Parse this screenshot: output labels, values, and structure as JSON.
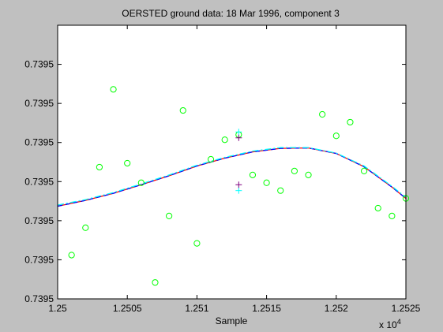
{
  "chart_data": {
    "type": "scatter",
    "title": "OERSTED ground data: 18 Mar 1996, component 3",
    "xlabel": "Sample",
    "ylabel": "",
    "x_multiplier_label": "x 10",
    "x_multiplier_exponent": "4",
    "xlim": [
      12500,
      12525
    ],
    "ylim": [
      0,
      7
    ],
    "xticks": [
      {
        "value": 12500,
        "label": "1.25"
      },
      {
        "value": 12505,
        "label": "1.2505"
      },
      {
        "value": 12510,
        "label": "1.251"
      },
      {
        "value": 12515,
        "label": "1.2515"
      },
      {
        "value": 12520,
        "label": "1.252"
      },
      {
        "value": 12525,
        "label": "1.2525"
      }
    ],
    "yticks": [
      {
        "value": 0,
        "label": "0.7395"
      },
      {
        "value": 1,
        "label": "0.7395"
      },
      {
        "value": 2,
        "label": "0.7395"
      },
      {
        "value": 3,
        "label": "0.7395"
      },
      {
        "value": 4,
        "label": "0.7395"
      },
      {
        "value": 5,
        "label": "0.7395"
      },
      {
        "value": 6,
        "label": "0.7395"
      }
    ],
    "grid": false,
    "series": [
      {
        "marker": "circle",
        "color": "#00ff00",
        "points": [
          [
            12501,
            1.12
          ],
          [
            12502,
            1.82
          ],
          [
            12503,
            3.37
          ],
          [
            12504,
            5.36
          ],
          [
            12505,
            3.47
          ],
          [
            12506,
            2.97
          ],
          [
            12507,
            0.42
          ],
          [
            12508,
            2.12
          ],
          [
            12509,
            4.82
          ],
          [
            12510,
            1.42
          ],
          [
            12511,
            3.57
          ],
          [
            12512,
            4.07
          ],
          [
            12513,
            4.2
          ],
          [
            12514,
            3.17
          ],
          [
            12515,
            2.97
          ],
          [
            12516,
            2.77
          ],
          [
            12517,
            3.27
          ],
          [
            12518,
            3.17
          ],
          [
            12519,
            4.72
          ],
          [
            12520,
            4.17
          ],
          [
            12521,
            4.52
          ],
          [
            12522,
            3.27
          ],
          [
            12523,
            2.32
          ],
          [
            12524,
            2.12
          ],
          [
            12525,
            2.57
          ]
        ]
      },
      {
        "marker": "plus",
        "color": "#00ffff",
        "points": [
          [
            12513,
            4.27
          ],
          [
            12513,
            2.77
          ]
        ]
      },
      {
        "marker": "plus",
        "color": "#800080",
        "points": [
          [
            12513,
            4.12
          ],
          [
            12513,
            2.92
          ]
        ]
      },
      {
        "marker": "line",
        "color": "#ff0000",
        "style": "solid",
        "points": [
          [
            12500,
            2.37
          ],
          [
            12502,
            2.52
          ],
          [
            12504,
            2.7
          ],
          [
            12506,
            2.92
          ],
          [
            12508,
            3.15
          ],
          [
            12510,
            3.4
          ],
          [
            12512,
            3.6
          ],
          [
            12514,
            3.76
          ],
          [
            12516,
            3.85
          ],
          [
            12518,
            3.86
          ],
          [
            12520,
            3.72
          ],
          [
            12522,
            3.38
          ],
          [
            12524,
            2.86
          ],
          [
            12525,
            2.57
          ]
        ]
      },
      {
        "marker": "line",
        "color": "#0000ff",
        "style": "dashed",
        "points": [
          [
            12500,
            2.37
          ],
          [
            12502,
            2.52
          ],
          [
            12504,
            2.7
          ],
          [
            12506,
            2.92
          ],
          [
            12508,
            3.15
          ],
          [
            12510,
            3.4
          ],
          [
            12512,
            3.6
          ],
          [
            12514,
            3.76
          ],
          [
            12516,
            3.85
          ],
          [
            12518,
            3.86
          ],
          [
            12520,
            3.72
          ],
          [
            12522,
            3.38
          ],
          [
            12524,
            2.86
          ],
          [
            12525,
            2.57
          ]
        ]
      },
      {
        "marker": "line",
        "color": "#00ffff",
        "style": "dash-dot",
        "points": [
          [
            12500,
            2.4
          ],
          [
            12502,
            2.54
          ],
          [
            12504,
            2.72
          ],
          [
            12506,
            2.94
          ],
          [
            12508,
            3.17
          ],
          [
            12510,
            3.42
          ],
          [
            12512,
            3.62
          ],
          [
            12514,
            3.78
          ],
          [
            12516,
            3.87
          ],
          [
            12518,
            3.87
          ],
          [
            12520,
            3.73
          ],
          [
            12522,
            3.4
          ],
          [
            12524,
            2.88
          ],
          [
            12525,
            2.6
          ]
        ]
      }
    ]
  }
}
